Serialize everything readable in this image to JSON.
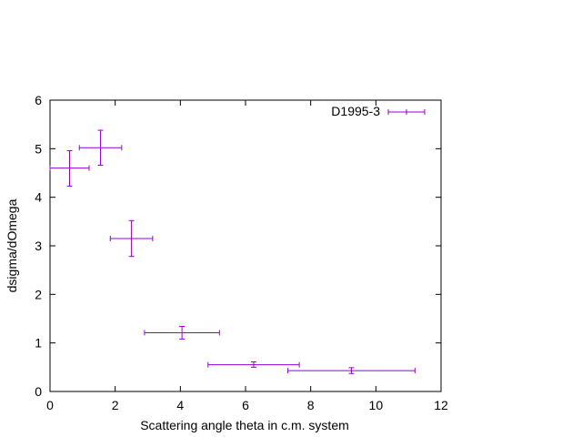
{
  "chart_data": {
    "type": "scatter",
    "title": "",
    "xlabel": "Scattering angle theta in c.m. system",
    "ylabel": "dsigma/dOmega",
    "xlim": [
      0,
      12
    ],
    "ylim": [
      0,
      6
    ],
    "xticks": [
      "0",
      "2",
      "4",
      "6",
      "8",
      "10",
      "12"
    ],
    "yticks": [
      "0",
      "1",
      "2",
      "3",
      "4",
      "5",
      "6"
    ],
    "grid": false,
    "legend_position": "top-right",
    "series": [
      {
        "name": "D1995-3",
        "color": "#9400d3",
        "error_bars": "xy",
        "points": [
          {
            "x": 0.6,
            "y": 4.6,
            "xlo": 0.0,
            "xhi": 1.2,
            "ylo": 4.23,
            "yhi": 4.96
          },
          {
            "x": 1.55,
            "y": 5.02,
            "xlo": 0.9,
            "xhi": 2.2,
            "ylo": 4.66,
            "yhi": 5.38
          },
          {
            "x": 2.5,
            "y": 3.15,
            "xlo": 1.85,
            "xhi": 3.15,
            "ylo": 2.78,
            "yhi": 3.52
          },
          {
            "x": 4.05,
            "y": 1.21,
            "xlo": 2.9,
            "xhi": 5.2,
            "ylo": 1.08,
            "yhi": 1.34
          },
          {
            "x": 6.25,
            "y": 0.55,
            "xlo": 4.85,
            "xhi": 7.65,
            "ylo": 0.5,
            "yhi": 0.61
          },
          {
            "x": 9.25,
            "y": 0.43,
            "xlo": 7.3,
            "xhi": 11.2,
            "ylo": 0.37,
            "yhi": 0.49
          }
        ]
      }
    ]
  }
}
